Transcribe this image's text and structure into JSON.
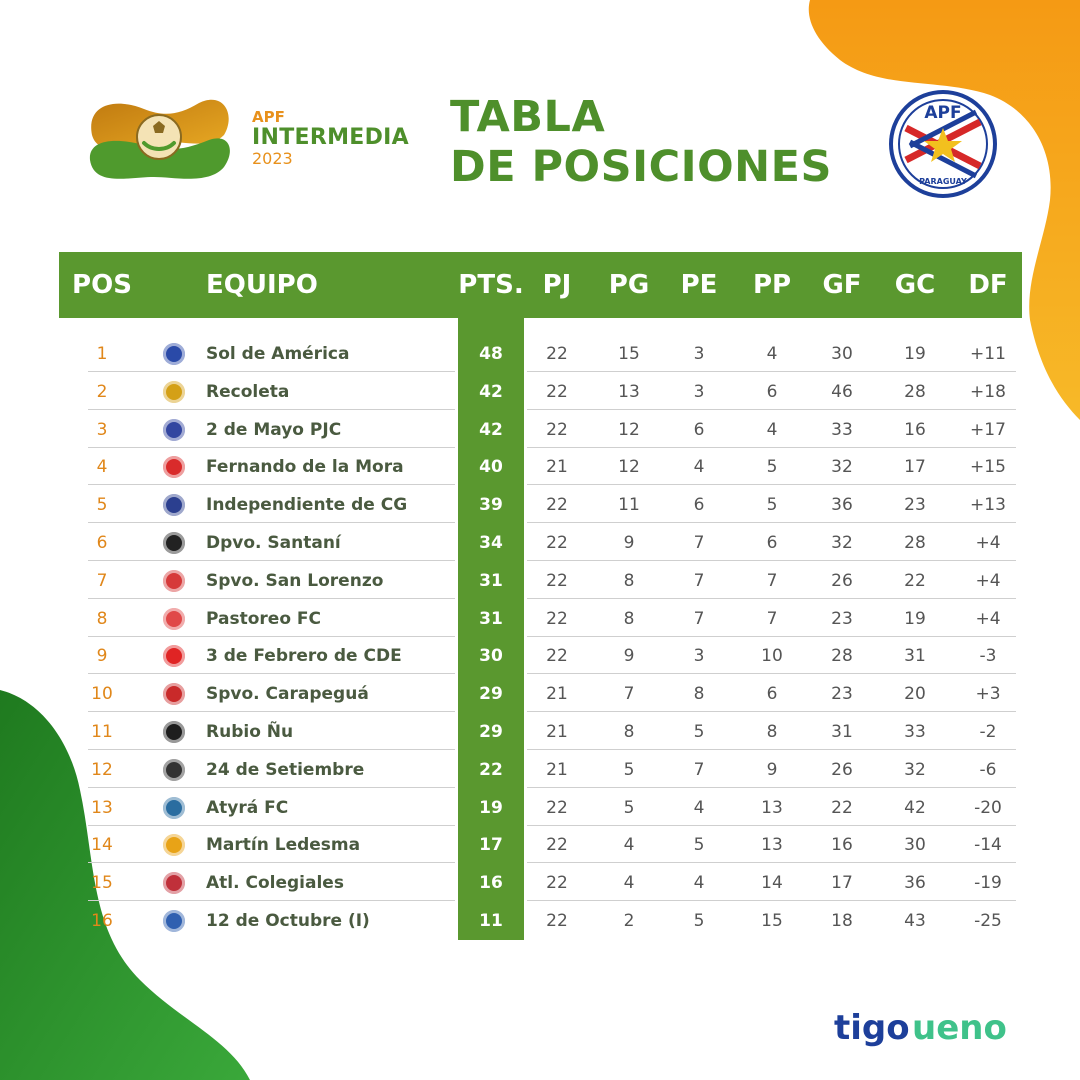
{
  "logo": {
    "line1": "APF",
    "line2": "INTERMEDIA",
    "line3": "2023"
  },
  "title": {
    "line1": "TABLA",
    "line2": "DE POSICIONES"
  },
  "crest": {
    "top": "APF",
    "bottom": "PARAGUAY"
  },
  "table": {
    "headers": {
      "pos": "POS",
      "team": "EQUIPO",
      "pts": "PTS.",
      "pj": "PJ",
      "pg": "PG",
      "pe": "PE",
      "pp": "PP",
      "gf": "GF",
      "gc": "GC",
      "df": "DF"
    },
    "rows": [
      {
        "pos": "1",
        "team": "Sol de América",
        "pts": "48",
        "pj": "22",
        "pg": "15",
        "pe": "3",
        "pp": "4",
        "gf": "30",
        "gc": "19",
        "df": "+11",
        "badge_color": "#2a4aa8"
      },
      {
        "pos": "2",
        "team": "Recoleta",
        "pts": "42",
        "pj": "22",
        "pg": "13",
        "pe": "3",
        "pp": "6",
        "gf": "46",
        "gc": "28",
        "df": "+18",
        "badge_color": "#d4a017"
      },
      {
        "pos": "3",
        "team": "2 de Mayo PJC",
        "pts": "42",
        "pj": "22",
        "pg": "12",
        "pe": "6",
        "pp": "4",
        "gf": "33",
        "gc": "16",
        "df": "+17",
        "badge_color": "#3346a0"
      },
      {
        "pos": "4",
        "team": "Fernando de la Mora",
        "pts": "40",
        "pj": "21",
        "pg": "12",
        "pe": "4",
        "pp": "5",
        "gf": "32",
        "gc": "17",
        "df": "+15",
        "badge_color": "#d92b2b"
      },
      {
        "pos": "5",
        "team": "Independiente de CG",
        "pts": "39",
        "pj": "22",
        "pg": "11",
        "pe": "6",
        "pp": "5",
        "gf": "36",
        "gc": "23",
        "df": "+13",
        "badge_color": "#2b3f8f"
      },
      {
        "pos": "6",
        "team": "Dpvo. Santaní",
        "pts": "34",
        "pj": "22",
        "pg": "9",
        "pe": "7",
        "pp": "6",
        "gf": "32",
        "gc": "28",
        "df": "+4",
        "badge_color": "#222222"
      },
      {
        "pos": "7",
        "team": "Spvo. San Lorenzo",
        "pts": "31",
        "pj": "22",
        "pg": "8",
        "pe": "7",
        "pp": "7",
        "gf": "26",
        "gc": "22",
        "df": "+4",
        "badge_color": "#d63a3a"
      },
      {
        "pos": "8",
        "team": "Pastoreo FC",
        "pts": "31",
        "pj": "22",
        "pg": "8",
        "pe": "7",
        "pp": "7",
        "gf": "23",
        "gc": "19",
        "df": "+4",
        "badge_color": "#e04848"
      },
      {
        "pos": "9",
        "team": "3 de Febrero de CDE",
        "pts": "30",
        "pj": "22",
        "pg": "9",
        "pe": "3",
        "pp": "10",
        "gf": "28",
        "gc": "31",
        "df": "-3",
        "badge_color": "#e02424"
      },
      {
        "pos": "10",
        "team": "Spvo. Carapeguá",
        "pts": "29",
        "pj": "21",
        "pg": "7",
        "pe": "8",
        "pp": "6",
        "gf": "23",
        "gc": "20",
        "df": "+3",
        "badge_color": "#c92a2a"
      },
      {
        "pos": "11",
        "team": "Rubio Ñu",
        "pts": "29",
        "pj": "21",
        "pg": "8",
        "pe": "5",
        "pp": "8",
        "gf": "31",
        "gc": "33",
        "df": "-2",
        "badge_color": "#1e1e1e"
      },
      {
        "pos": "12",
        "team": "24 de Setiembre",
        "pts": "22",
        "pj": "21",
        "pg": "5",
        "pe": "7",
        "pp": "9",
        "gf": "26",
        "gc": "32",
        "df": "-6",
        "badge_color": "#333333"
      },
      {
        "pos": "13",
        "team": "Atyrá FC",
        "pts": "19",
        "pj": "22",
        "pg": "5",
        "pe": "4",
        "pp": "13",
        "gf": "22",
        "gc": "42",
        "df": "-20",
        "badge_color": "#2a6da0"
      },
      {
        "pos": "14",
        "team": "Martín Ledesma",
        "pts": "17",
        "pj": "22",
        "pg": "4",
        "pe": "5",
        "pp": "13",
        "gf": "16",
        "gc": "30",
        "df": "-14",
        "badge_color": "#e8a317"
      },
      {
        "pos": "15",
        "team": "Atl. Colegiales",
        "pts": "16",
        "pj": "22",
        "pg": "4",
        "pe": "4",
        "pp": "14",
        "gf": "17",
        "gc": "36",
        "df": "-19",
        "badge_color": "#c0303a"
      },
      {
        "pos": "16",
        "team": "12 de Octubre (I)",
        "pts": "11",
        "pj": "22",
        "pg": "2",
        "pe": "5",
        "pp": "15",
        "gf": "18",
        "gc": "43",
        "df": "-25",
        "badge_color": "#3060b0"
      }
    ]
  },
  "sponsors": {
    "tigo": "tigo",
    "ueno": "ueno"
  },
  "colors": {
    "green": "#5a982f",
    "orange": "#f39a1a",
    "title_green": "#4e8f2b",
    "pos_orange": "#e0871a"
  }
}
